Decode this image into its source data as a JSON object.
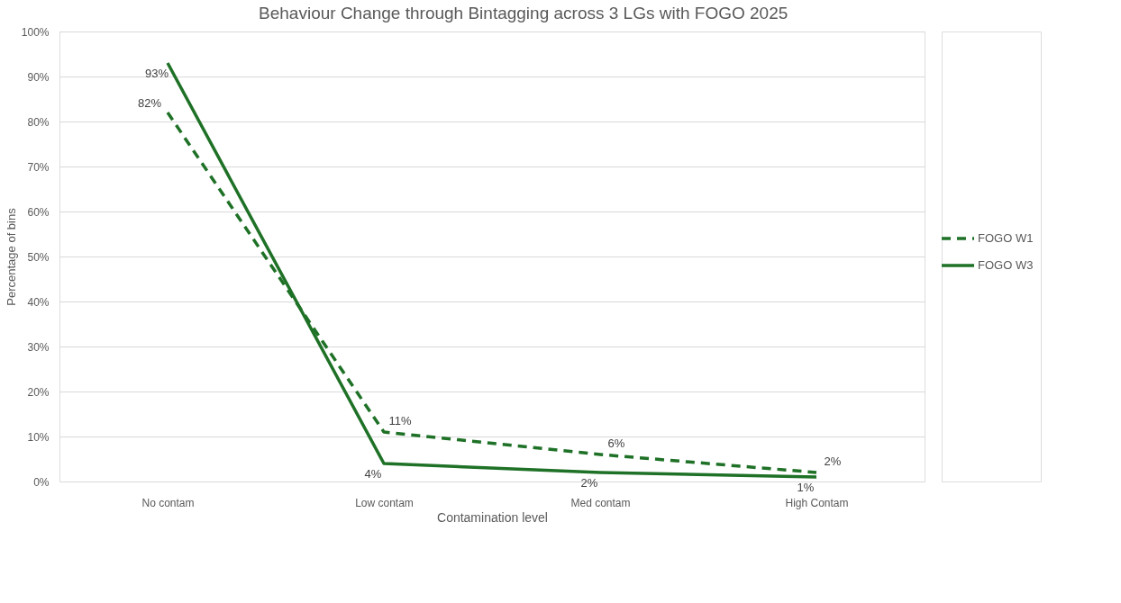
{
  "chart_data": {
    "type": "line",
    "title": "Behaviour Change  through Bintagging across 3 LGs with FOGO 2025",
    "xlabel": "Contamination level",
    "ylabel": "Percentage of bins",
    "categories": [
      "No contam",
      "Low contam",
      "Med contam",
      "High Contam"
    ],
    "series": [
      {
        "name": "FOGO W1",
        "color": "#1e7126",
        "line_style": "dashed",
        "values": [
          82,
          11,
          6,
          2
        ],
        "value_labels": [
          "82%",
          "11%",
          "6%",
          "2%"
        ]
      },
      {
        "name": "FOGO W3",
        "color": "#1e7126",
        "line_style": "solid",
        "values": [
          93,
          4,
          2,
          1
        ],
        "value_labels": [
          "93%",
          "4%",
          "2%",
          "1%"
        ]
      }
    ],
    "ylim": [
      0,
      100
    ],
    "yticks": [
      {
        "value": 0,
        "label": "0%"
      },
      {
        "value": 10,
        "label": "10%"
      },
      {
        "value": 20,
        "label": "20%"
      },
      {
        "value": 30,
        "label": "30%"
      },
      {
        "value": 40,
        "label": "40%"
      },
      {
        "value": 50,
        "label": "50%"
      },
      {
        "value": 60,
        "label": "60%"
      },
      {
        "value": 70,
        "label": "70%"
      },
      {
        "value": 80,
        "label": "80%"
      },
      {
        "value": 90,
        "label": "90%"
      },
      {
        "value": 100,
        "label": "100%"
      }
    ],
    "grid": "y",
    "legend": "right",
    "marker": "none"
  }
}
